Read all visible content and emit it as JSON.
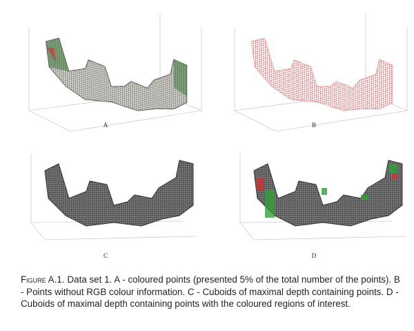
{
  "figure": {
    "panels": [
      {
        "label": "A"
      },
      {
        "label": "B"
      },
      {
        "label": "C"
      },
      {
        "label": "D"
      }
    ],
    "caption": {
      "label": "Figure A.1.",
      "text": "Data set 1. A - coloured points (presented 5% of the total number of the points). B - Points without RGB colour information. C - Cuboids of maximal depth containing points. D - Cuboids of maximal depth containing points with the coloured regions of interest."
    }
  }
}
